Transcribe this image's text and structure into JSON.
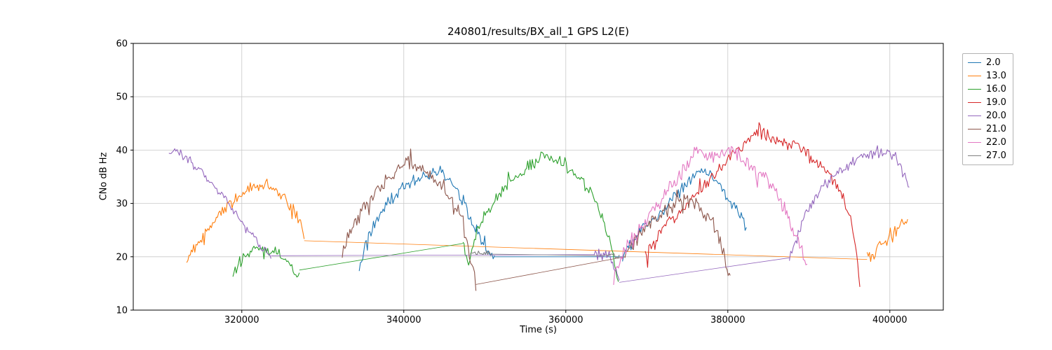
{
  "chart_data": {
    "type": "line",
    "title": "240801/results/BX_all_1 GPS L2(E)",
    "xlabel": "Time (s)",
    "ylabel": "CNo dB Hz",
    "xlim": [
      306600,
      406600
    ],
    "ylim": [
      10,
      60
    ],
    "xticks": [
      320000,
      340000,
      360000,
      380000,
      400000
    ],
    "yticks": [
      10,
      20,
      30,
      40,
      50,
      60
    ],
    "grid": true,
    "legend_position": "outside upper right",
    "series": [
      {
        "name": "2.0",
        "color": "#1f77b4",
        "segments": [
          {
            "noise": 1.3,
            "points": [
              [
                334500,
                18
              ],
              [
                335500,
                23
              ],
              [
                337000,
                28
              ],
              [
                338500,
                31
              ],
              [
                340000,
                33
              ],
              [
                341500,
                34.5
              ],
              [
                343000,
                35.5
              ],
              [
                344500,
                36
              ],
              [
                346000,
                33.5
              ],
              [
                347500,
                30
              ],
              [
                348700,
                26
              ],
              [
                349700,
                22.5
              ],
              [
                350700,
                20.5
              ],
              [
                351200,
                20
              ]
            ]
          },
          {
            "noise": 0,
            "points": [
              [
                351200,
                20
              ],
              [
                367000,
                20
              ]
            ]
          },
          {
            "noise": 1.3,
            "points": [
              [
                367000,
                20
              ],
              [
                368500,
                23.5
              ],
              [
                370000,
                26
              ],
              [
                371500,
                28
              ],
              [
                373000,
                30.5
              ],
              [
                374500,
                33
              ],
              [
                376000,
                35.5
              ],
              [
                377200,
                36.5
              ],
              [
                378400,
                34.5
              ],
              [
                379600,
                32
              ],
              [
                380800,
                29.5
              ],
              [
                381800,
                27
              ],
              [
                382300,
                25.5
              ]
            ]
          }
        ]
      },
      {
        "name": "13.0",
        "color": "#ff7f0e",
        "segments": [
          {
            "noise": 1.4,
            "points": [
              [
                313200,
                19
              ],
              [
                314200,
                21.5
              ],
              [
                315500,
                24.5
              ],
              [
                317000,
                27.5
              ],
              [
                318500,
                30
              ],
              [
                320000,
                31.8
              ],
              [
                321500,
                33.2
              ],
              [
                322800,
                33.6
              ],
              [
                324200,
                32.5
              ],
              [
                325600,
                30.5
              ],
              [
                326800,
                28
              ],
              [
                327400,
                25.5
              ],
              [
                327700,
                23
              ]
            ]
          },
          {
            "noise": 0,
            "points": [
              [
                327700,
                23
              ],
              [
                397200,
                19.5
              ]
            ]
          },
          {
            "noise": 1.5,
            "points": [
              [
                397200,
                19.5
              ],
              [
                398200,
                21
              ],
              [
                399200,
                22.5
              ],
              [
                400200,
                24
              ],
              [
                401200,
                25.5
              ],
              [
                402200,
                26.5
              ]
            ]
          }
        ]
      },
      {
        "name": "16.0",
        "color": "#2ca02c",
        "segments": [
          {
            "noise": 1.3,
            "points": [
              [
                318900,
                16.5
              ],
              [
                319600,
                18.5
              ],
              [
                320600,
                20.5
              ],
              [
                321800,
                21.3
              ],
              [
                323200,
                21.2
              ],
              [
                324600,
                20.5
              ],
              [
                325700,
                19
              ],
              [
                326500,
                17
              ],
              [
                327100,
                16.2
              ]
            ]
          },
          {
            "noise": 0,
            "points": [
              [
                327100,
                17.5
              ],
              [
                347300,
                22.5
              ]
            ]
          },
          {
            "noise": 1.4,
            "points": [
              [
                347300,
                22.5
              ],
              [
                348000,
                19
              ],
              [
                349000,
                25
              ],
              [
                350500,
                29
              ],
              [
                352000,
                32
              ],
              [
                353500,
                34.5
              ],
              [
                355000,
                36.5
              ],
              [
                356300,
                38
              ],
              [
                357400,
                39
              ],
              [
                358800,
                38
              ],
              [
                360200,
                36.8
              ],
              [
                361600,
                35
              ],
              [
                363000,
                32
              ],
              [
                364200,
                28.5
              ],
              [
                365200,
                24
              ],
              [
                366000,
                19.5
              ],
              [
                366500,
                15.5
              ]
            ]
          }
        ]
      },
      {
        "name": "19.0",
        "color": "#d62728",
        "segments": [
          {
            "noise": 1.5,
            "points": [
              [
                369800,
                20
              ],
              [
                371000,
                23
              ],
              [
                372500,
                26
              ],
              [
                374000,
                28.5
              ],
              [
                375500,
                31
              ],
              [
                377000,
                33.5
              ],
              [
                378500,
                36
              ],
              [
                380000,
                38.5
              ],
              [
                381500,
                40.5
              ],
              [
                383000,
                42.5
              ],
              [
                384000,
                43.3
              ],
              [
                385200,
                42.8
              ],
              [
                386500,
                41.8
              ],
              [
                388000,
                40.8
              ],
              [
                389500,
                39.5
              ],
              [
                391000,
                37.8
              ],
              [
                392300,
                35.8
              ],
              [
                393400,
                33.5
              ],
              [
                394400,
                30.5
              ],
              [
                395300,
                26.5
              ],
              [
                395900,
                21
              ],
              [
                396300,
                14.5
              ]
            ]
          }
        ]
      },
      {
        "name": "20.0",
        "color": "#9467bd",
        "segments": [
          {
            "noise": 1.2,
            "points": [
              [
                311000,
                39.5
              ],
              [
                312000,
                39.8
              ],
              [
                313200,
                38.5
              ],
              [
                314500,
                36.5
              ],
              [
                316000,
                34
              ],
              [
                317500,
                31.5
              ],
              [
                319000,
                28.5
              ],
              [
                320500,
                25.5
              ],
              [
                321800,
                23
              ],
              [
                322800,
                21.2
              ],
              [
                323600,
                20.2
              ]
            ]
          },
          {
            "noise": 0,
            "points": [
              [
                323600,
                20.2
              ],
              [
                363500,
                20.4
              ]
            ]
          },
          {
            "noise": 1.5,
            "points": [
              [
                363500,
                20.4
              ],
              [
                364500,
                20.5
              ],
              [
                365500,
                20
              ],
              [
                366200,
                17
              ],
              [
                366600,
                15.2
              ]
            ]
          },
          {
            "noise": 0,
            "points": [
              [
                366600,
                15.2
              ],
              [
                387600,
                19.8
              ]
            ]
          },
          {
            "noise": 1.3,
            "points": [
              [
                387600,
                19.8
              ],
              [
                388400,
                23
              ],
              [
                389400,
                27
              ],
              [
                390600,
                30.5
              ],
              [
                392000,
                33.5
              ],
              [
                393500,
                35.8
              ],
              [
                395000,
                37.5
              ],
              [
                396500,
                38.8
              ],
              [
                398000,
                39.5
              ],
              [
                399400,
                39.8
              ],
              [
                400400,
                39
              ],
              [
                401300,
                37
              ],
              [
                402000,
                34.5
              ],
              [
                402400,
                32.8
              ]
            ]
          }
        ]
      },
      {
        "name": "21.0",
        "color": "#8c564b",
        "segments": [
          {
            "noise": 1.6,
            "points": [
              [
                332400,
                21
              ],
              [
                333200,
                24
              ],
              [
                334200,
                27
              ],
              [
                335400,
                30
              ],
              [
                336800,
                32.5
              ],
              [
                338200,
                35
              ],
              [
                339500,
                36.8
              ],
              [
                340700,
                37.5
              ],
              [
                342000,
                36.5
              ],
              [
                343400,
                34.8
              ],
              [
                344800,
                33
              ],
              [
                346000,
                31
              ],
              [
                347000,
                27.5
              ],
              [
                347800,
                22.5
              ],
              [
                348400,
                17.5
              ],
              [
                348900,
                14.8
              ]
            ]
          },
          {
            "noise": 0,
            "points": [
              [
                348900,
                14.8
              ],
              [
                367300,
                20
              ]
            ]
          },
          {
            "noise": 1.6,
            "points": [
              [
                367300,
                20
              ],
              [
                368500,
                23
              ],
              [
                370000,
                25.5
              ],
              [
                371500,
                27.5
              ],
              [
                373000,
                29.5
              ],
              [
                374300,
                31
              ],
              [
                375600,
                30.5
              ],
              [
                377000,
                28.5
              ],
              [
                378200,
                26
              ],
              [
                379200,
                22.5
              ],
              [
                379900,
                18
              ],
              [
                380300,
                15.2
              ]
            ]
          }
        ]
      },
      {
        "name": "22.0",
        "color": "#e377c2",
        "segments": [
          {
            "noise": 1.6,
            "points": [
              [
                365900,
                15.5
              ],
              [
                366500,
                18.5
              ],
              [
                367300,
                21
              ],
              [
                368300,
                23.5
              ],
              [
                369500,
                26
              ],
              [
                371000,
                29
              ],
              [
                372500,
                32
              ],
              [
                374000,
                35
              ],
              [
                375300,
                38
              ],
              [
                376300,
                40.5
              ],
              [
                377000,
                39.5
              ],
              [
                377900,
                38.5
              ],
              [
                379000,
                39.5
              ],
              [
                380000,
                40.2
              ],
              [
                381000,
                39.5
              ],
              [
                382200,
                38
              ],
              [
                383500,
                36.5
              ],
              [
                384800,
                34.5
              ],
              [
                386000,
                32
              ],
              [
                387000,
                29
              ],
              [
                388000,
                25.5
              ],
              [
                389000,
                21.5
              ],
              [
                389800,
                18.5
              ]
            ]
          }
        ]
      },
      {
        "name": "27.0",
        "color": "#7f7f7f",
        "segments": [
          {
            "noise": 0.5,
            "points": [
              [
                348200,
                20.8
              ],
              [
                349500,
                20.6
              ],
              [
                350800,
                20.5
              ]
            ]
          },
          {
            "noise": 0,
            "points": [
              [
                350800,
                20.5
              ],
              [
                364800,
                20.2
              ]
            ]
          },
          {
            "noise": 0.6,
            "points": [
              [
                364800,
                20.2
              ],
              [
                365800,
                20.4
              ],
              [
                366600,
                20.0
              ]
            ]
          }
        ]
      }
    ]
  }
}
